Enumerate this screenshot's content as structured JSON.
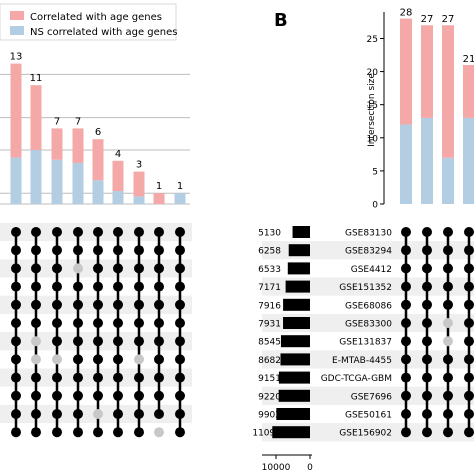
{
  "panel_b_label": "B",
  "legend": [
    {
      "label": "Correlated with age genes",
      "color": "#f4a9a8"
    },
    {
      "label": "NS correlated with age genes",
      "color": "#b3cde3"
    }
  ],
  "colors": {
    "correlated": "#f4a9a8",
    "ns": "#b3cde3",
    "dot_active": "#000000",
    "dot_inactive": "#c8c8c8",
    "stripe": "#efefef",
    "set_bar": "#000000"
  },
  "chart_data": [
    {
      "type": "bar",
      "panel": "A",
      "stacked": true,
      "categories": [
        "1",
        "2",
        "3",
        "4",
        "5",
        "6",
        "7",
        "8",
        "9"
      ],
      "values": [
        13,
        11,
        7,
        7,
        6,
        4,
        3,
        1,
        1
      ],
      "value_labels": [
        "13",
        "11",
        "7",
        "7",
        "6",
        "4",
        "3",
        "1",
        "1"
      ],
      "series": [
        {
          "name": "NS correlated with age genes",
          "values": [
            4.3,
            5,
            4.1,
            3.8,
            2.2,
            1.2,
            0.7,
            0,
            1
          ]
        },
        {
          "name": "Correlated with age genes",
          "values": [
            8.7,
            6,
            2.9,
            3.2,
            3.8,
            2.8,
            2.3,
            1,
            0
          ]
        }
      ],
      "matrix_rows": 12,
      "matrix_inactive": [
        [
          2,
          3
        ],
        [
          6,
          1
        ],
        [
          7,
          1
        ],
        [
          7,
          2
        ],
        [
          7,
          6
        ],
        [
          10,
          4
        ],
        [
          11,
          7
        ]
      ]
    },
    {
      "type": "bar",
      "panel": "B",
      "stacked": true,
      "ylabel": "Intersection size",
      "ylim": [
        0,
        29
      ],
      "yticks": [
        "0",
        "5",
        "10",
        "15",
        "20",
        "25"
      ],
      "categories": [
        "1",
        "2",
        "3",
        "4"
      ],
      "values": [
        28,
        27,
        27,
        21
      ],
      "value_labels": [
        "28",
        "27",
        "27",
        "21"
      ],
      "series": [
        {
          "name": "NS correlated with age genes",
          "values": [
            12,
            13,
            7,
            13
          ]
        },
        {
          "name": "Correlated with age genes",
          "values": [
            16,
            14,
            20,
            8
          ]
        }
      ],
      "sets": [
        "GSE83130",
        "GSE83294",
        "GSE4412",
        "GSE151352",
        "GSE68086",
        "GSE83300",
        "GSE131837",
        "E-MTAB-4455",
        "GDC-TCGA-GBM",
        "GSE7696",
        "GSE50161",
        "GSE156902"
      ],
      "set_sizes": [
        5130,
        6258,
        6533,
        7171,
        7916,
        7931,
        8545,
        8682,
        9151,
        9220,
        9902,
        11093
      ],
      "set_size_labels": [
        "5130",
        "6258",
        "6533",
        "7171",
        "7916",
        "7931",
        "8545",
        "8682",
        "9151",
        "9220",
        "9902",
        "11093"
      ],
      "set_size_axis_ticks": [
        "10000",
        "0"
      ],
      "matrix_inactive": [
        [
          5,
          2
        ],
        [
          6,
          2
        ]
      ]
    }
  ]
}
